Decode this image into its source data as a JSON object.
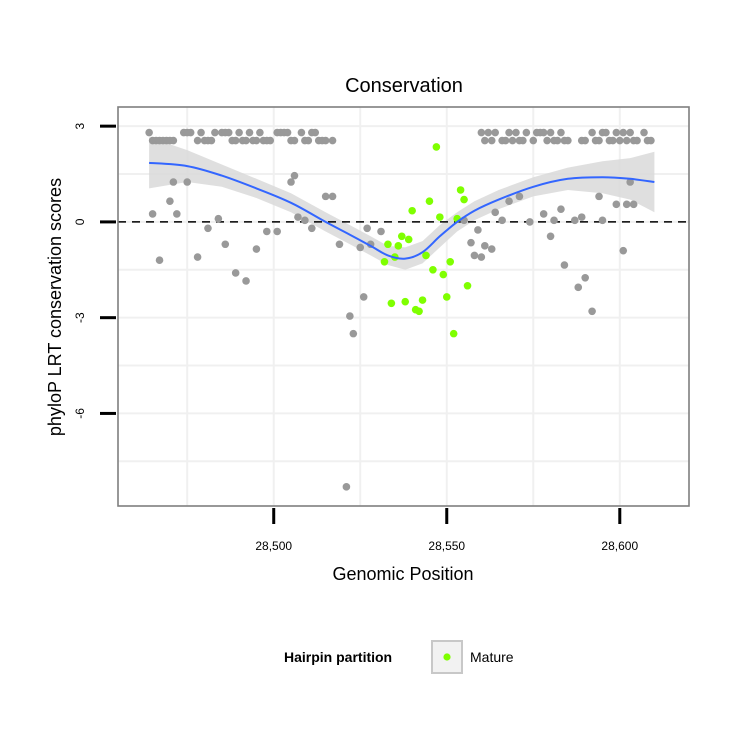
{
  "chart_data": {
    "type": "scatter",
    "title": "Conservation",
    "xlabel": "Genomic Position",
    "ylabel": "phyloP LRT conservation scores",
    "xlim": [
      28455,
      28620
    ],
    "ylim": [
      -8.9,
      3.6
    ],
    "x_ticks": [
      28500,
      28550,
      28600
    ],
    "x_tick_labels": [
      "28,500",
      "28,550",
      "28,600"
    ],
    "y_ticks": [
      3,
      0,
      -3,
      -6
    ],
    "y_tick_labels": [
      "3",
      "0",
      "-3",
      "-6"
    ],
    "reference_line": {
      "y": 0,
      "style": "dashed"
    },
    "grid": true,
    "legend": {
      "title": "Hairpin partition",
      "entries": [
        {
          "label": "Mature",
          "color": "#7fff00"
        }
      ],
      "placement": "bottom"
    },
    "colors": {
      "background_points": "#999999",
      "mature_points": "#7fff00",
      "smooth_line": "#3366ff",
      "confidence_band": "#d9d9d9"
    },
    "series": [
      {
        "points": [
          [
            28464,
            2.8
          ],
          [
            28465,
            2.55
          ],
          [
            28466,
            2.55
          ],
          [
            28467,
            2.55
          ],
          [
            28468,
            2.55
          ],
          [
            28469,
            2.55
          ],
          [
            28470,
            2.55
          ],
          [
            28471,
            2.55
          ],
          [
            28474,
            2.8
          ],
          [
            28475,
            2.8
          ],
          [
            28476,
            2.8
          ],
          [
            28478,
            2.55
          ],
          [
            28479,
            2.8
          ],
          [
            28480,
            2.55
          ],
          [
            28481,
            2.55
          ],
          [
            28482,
            2.55
          ],
          [
            28483,
            2.8
          ],
          [
            28485,
            2.8
          ],
          [
            28486,
            2.8
          ],
          [
            28487,
            2.8
          ],
          [
            28488,
            2.55
          ],
          [
            28489,
            2.55
          ],
          [
            28490,
            2.8
          ],
          [
            28491,
            2.55
          ],
          [
            28492,
            2.55
          ],
          [
            28493,
            2.8
          ],
          [
            28494,
            2.55
          ],
          [
            28495,
            2.55
          ],
          [
            28496,
            2.8
          ],
          [
            28497,
            2.55
          ],
          [
            28498,
            2.55
          ],
          [
            28499,
            2.55
          ],
          [
            28501,
            2.8
          ],
          [
            28502,
            2.8
          ],
          [
            28503,
            2.8
          ],
          [
            28504,
            2.8
          ],
          [
            28505,
            2.55
          ],
          [
            28506,
            2.55
          ],
          [
            28508,
            2.8
          ],
          [
            28509,
            2.55
          ],
          [
            28510,
            2.55
          ],
          [
            28511,
            2.8
          ],
          [
            28512,
            2.8
          ],
          [
            28513,
            2.55
          ],
          [
            28514,
            2.55
          ],
          [
            28515,
            2.55
          ],
          [
            28517,
            2.55
          ],
          [
            28465,
            0.25
          ],
          [
            28467,
            -1.2
          ],
          [
            28470,
            0.65
          ],
          [
            28471,
            1.25
          ],
          [
            28472,
            0.25
          ],
          [
            28475,
            1.25
          ],
          [
            28478,
            -1.1
          ],
          [
            28481,
            -0.2
          ],
          [
            28484,
            0.1
          ],
          [
            28486,
            -0.7
          ],
          [
            28489,
            -1.6
          ],
          [
            28492,
            -1.85
          ],
          [
            28495,
            -0.85
          ],
          [
            28498,
            -0.3
          ],
          [
            28501,
            -0.3
          ],
          [
            28505,
            1.25
          ],
          [
            28506,
            1.45
          ],
          [
            28507,
            0.15
          ],
          [
            28509,
            0.05
          ],
          [
            28511,
            -0.2
          ],
          [
            28515,
            0.8
          ],
          [
            28517,
            0.8
          ],
          [
            28519,
            -0.7
          ],
          [
            28521,
            -8.3
          ],
          [
            28522,
            -2.95
          ],
          [
            28523,
            -3.5
          ],
          [
            28525,
            -0.8
          ],
          [
            28526,
            -2.35
          ],
          [
            28527,
            -0.2
          ],
          [
            28528,
            -0.7
          ],
          [
            28531,
            -0.3
          ],
          [
            28555,
            0.05
          ],
          [
            28557,
            -0.65
          ],
          [
            28558,
            -1.05
          ],
          [
            28559,
            -0.25
          ],
          [
            28560,
            -1.1
          ],
          [
            28561,
            -0.75
          ],
          [
            28563,
            -0.85
          ],
          [
            28564,
            0.3
          ],
          [
            28566,
            0.05
          ],
          [
            28568,
            0.65
          ],
          [
            28571,
            0.8
          ],
          [
            28574,
            0
          ],
          [
            28578,
            0.25
          ],
          [
            28580,
            -0.45
          ],
          [
            28581,
            0.05
          ],
          [
            28583,
            0.4
          ],
          [
            28584,
            -1.35
          ],
          [
            28587,
            0.05
          ],
          [
            28588,
            -2.05
          ],
          [
            28590,
            -1.75
          ],
          [
            28589,
            0.15
          ],
          [
            28592,
            -2.8
          ],
          [
            28594,
            0.8
          ],
          [
            28595,
            0.05
          ],
          [
            28599,
            0.55
          ],
          [
            28601,
            -0.9
          ],
          [
            28602,
            0.55
          ],
          [
            28603,
            1.25
          ],
          [
            28560,
            2.8
          ],
          [
            28561,
            2.55
          ],
          [
            28562,
            2.8
          ],
          [
            28563,
            2.55
          ],
          [
            28564,
            2.8
          ],
          [
            28566,
            2.55
          ],
          [
            28567,
            2.55
          ],
          [
            28568,
            2.8
          ],
          [
            28569,
            2.55
          ],
          [
            28570,
            2.8
          ],
          [
            28571,
            2.55
          ],
          [
            28572,
            2.55
          ],
          [
            28573,
            2.8
          ],
          [
            28575,
            2.55
          ],
          [
            28576,
            2.8
          ],
          [
            28577,
            2.8
          ],
          [
            28578,
            2.8
          ],
          [
            28579,
            2.55
          ],
          [
            28580,
            2.8
          ],
          [
            28581,
            2.55
          ],
          [
            28582,
            2.55
          ],
          [
            28583,
            2.8
          ],
          [
            28584,
            2.55
          ],
          [
            28585,
            2.55
          ],
          [
            28589,
            2.55
          ],
          [
            28590,
            2.55
          ],
          [
            28592,
            2.8
          ],
          [
            28593,
            2.55
          ],
          [
            28594,
            2.55
          ],
          [
            28595,
            2.8
          ],
          [
            28596,
            2.8
          ],
          [
            28597,
            2.55
          ],
          [
            28598,
            2.55
          ],
          [
            28599,
            2.8
          ],
          [
            28600,
            2.55
          ],
          [
            28601,
            2.8
          ],
          [
            28602,
            2.55
          ],
          [
            28603,
            2.8
          ],
          [
            28604,
            2.55
          ],
          [
            28605,
            2.55
          ],
          [
            28604,
            0.55
          ],
          [
            28607,
            2.8
          ],
          [
            28608,
            2.55
          ],
          [
            28609,
            2.55
          ]
        ]
      },
      {
        "name": "Mature",
        "points": [
          [
            28532,
            -1.25
          ],
          [
            28533,
            -0.7
          ],
          [
            28534,
            -2.55
          ],
          [
            28535,
            -1.1
          ],
          [
            28536,
            -0.75
          ],
          [
            28537,
            -0.45
          ],
          [
            28538,
            -2.5
          ],
          [
            28539,
            -0.55
          ],
          [
            28540,
            0.35
          ],
          [
            28541,
            -2.75
          ],
          [
            28542,
            -2.8
          ],
          [
            28543,
            -2.45
          ],
          [
            28544,
            -1.05
          ],
          [
            28545,
            0.65
          ],
          [
            28546,
            -1.5
          ],
          [
            28547,
            2.35
          ],
          [
            28548,
            0.15
          ],
          [
            28549,
            -1.65
          ],
          [
            28550,
            -2.35
          ],
          [
            28551,
            -1.25
          ],
          [
            28552,
            -3.5
          ],
          [
            28553,
            0.1
          ],
          [
            28554,
            1.0
          ],
          [
            28555,
            0.7
          ],
          [
            28556,
            -2.0
          ]
        ]
      }
    ],
    "smooth": {
      "x": [
        28464,
        28475,
        28485,
        28495,
        28505,
        28515,
        28522,
        28528,
        28533,
        28538,
        28543,
        28548,
        28553,
        28558,
        28565,
        28575,
        28585,
        28595,
        28603,
        28610
      ],
      "y": [
        1.85,
        1.75,
        1.45,
        1.05,
        0.6,
        0.0,
        -0.4,
        -0.75,
        -1.05,
        -1.15,
        -0.95,
        -0.45,
        0.0,
        0.35,
        0.7,
        1.1,
        1.35,
        1.4,
        1.35,
        1.25
      ],
      "upper": [
        2.65,
        2.25,
        1.8,
        1.35,
        0.9,
        0.3,
        -0.1,
        -0.45,
        -0.75,
        -0.8,
        -0.6,
        -0.1,
        0.3,
        0.65,
        1.0,
        1.4,
        1.7,
        1.9,
        2.0,
        2.2
      ],
      "lower": [
        1.05,
        1.25,
        1.1,
        0.75,
        0.3,
        -0.3,
        -0.7,
        -1.05,
        -1.35,
        -1.5,
        -1.3,
        -0.8,
        -0.3,
        0.05,
        0.4,
        0.8,
        1.0,
        0.9,
        0.7,
        0.3
      ]
    }
  }
}
